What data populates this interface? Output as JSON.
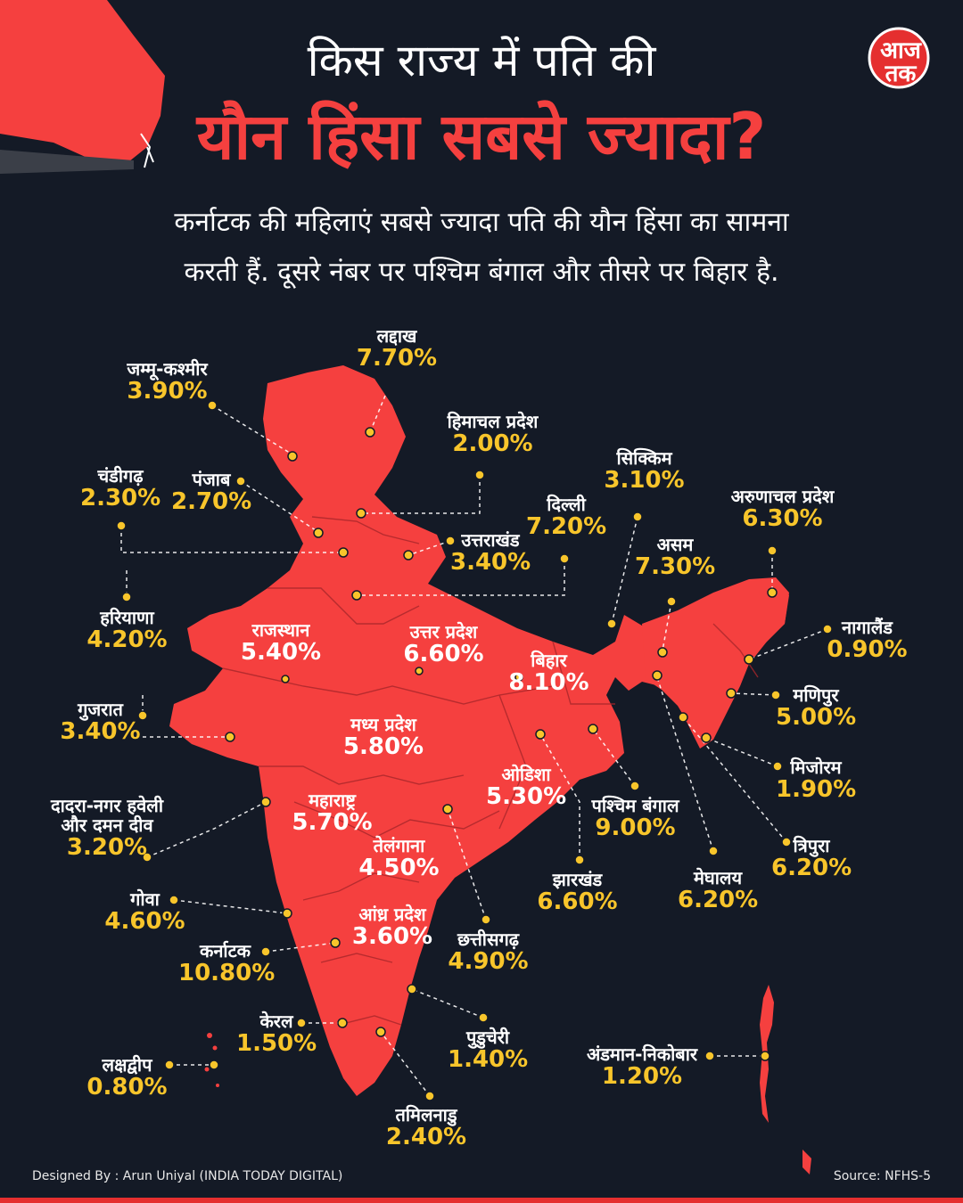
{
  "title_line1": "किस राज्य में पति की",
  "title_line2": "यौन हिंसा सबसे ज्यादा?",
  "subtitle_line1": "कर्नाटक की महिलाएं सबसे ज्यादा पति की यौन हिंसा का सामना",
  "subtitle_line2": "करती हैं. दूसरे नंबर पर पश्चिम बंगाल और तीसरे पर बिहार है.",
  "logo_text": "आज तक",
  "footer_credit": "Designed By : Arun Uniyal (INDIA TODAY DIGITAL)",
  "footer_source": "Source:  NFHS-5",
  "colors": {
    "background": "#141a26",
    "map_fill": "#f5403f",
    "value_yellow": "#f8c52b",
    "accent_red": "#e52f2f"
  },
  "regions": [
    {
      "name": "लद्दाख",
      "value": "7.70%"
    },
    {
      "name": "जम्मू-कश्मीर",
      "value": "3.90%"
    },
    {
      "name": "हिमाचल प्रदेश",
      "value": "2.00%"
    },
    {
      "name": "चंडीगढ़",
      "value": "2.30%"
    },
    {
      "name": "पंजाब",
      "value": "2.70%"
    },
    {
      "name": "सिक्किम",
      "value": "3.10%"
    },
    {
      "name": "दिल्ली",
      "value": "7.20%"
    },
    {
      "name": "उत्तराखंड",
      "value": "3.40%"
    },
    {
      "name": "अरुणाचल प्रदेश",
      "value": "6.30%"
    },
    {
      "name": "असम",
      "value": "7.30%"
    },
    {
      "name": "हरियाणा",
      "value": "4.20%"
    },
    {
      "name": "राजस्थान",
      "value": "5.40%"
    },
    {
      "name": "उत्तर प्रदेश",
      "value": "6.60%"
    },
    {
      "name": "बिहार",
      "value": "8.10%"
    },
    {
      "name": "नागालैंड",
      "value": "0.90%"
    },
    {
      "name": "गुजरात",
      "value": "3.40%"
    },
    {
      "name": "मध्य प्रदेश",
      "value": "5.80%"
    },
    {
      "name": "मणिपुर",
      "value": "5.00%"
    },
    {
      "name": "ओडिशा",
      "value": "5.30%"
    },
    {
      "name": "मिजोरम",
      "value": "1.90%"
    },
    {
      "name": "दादरा-नगर हवेली और दमन दीव",
      "value": "3.20%"
    },
    {
      "name": "महाराष्ट्र",
      "value": "5.70%"
    },
    {
      "name": "पश्चिम बंगाल",
      "value": "9.00%"
    },
    {
      "name": "तेलंगाना",
      "value": "4.50%"
    },
    {
      "name": "त्रिपुरा",
      "value": "6.20%"
    },
    {
      "name": "झारखंड",
      "value": "6.60%"
    },
    {
      "name": "मेघालय",
      "value": "6.20%"
    },
    {
      "name": "गोवा",
      "value": "4.60%"
    },
    {
      "name": "आंध्र प्रदेश",
      "value": "3.60%"
    },
    {
      "name": "छत्तीसगढ़",
      "value": "4.90%"
    },
    {
      "name": "कर्नाटक",
      "value": "10.80%"
    },
    {
      "name": "केरल",
      "value": "1.50%"
    },
    {
      "name": "पुडुचेरी",
      "value": "1.40%"
    },
    {
      "name": "अंडमान-निकोबार",
      "value": "1.20%"
    },
    {
      "name": "लक्षद्वीप",
      "value": "0.80%"
    },
    {
      "name": "तमिलनाडु",
      "value": "2.40%"
    }
  ]
}
